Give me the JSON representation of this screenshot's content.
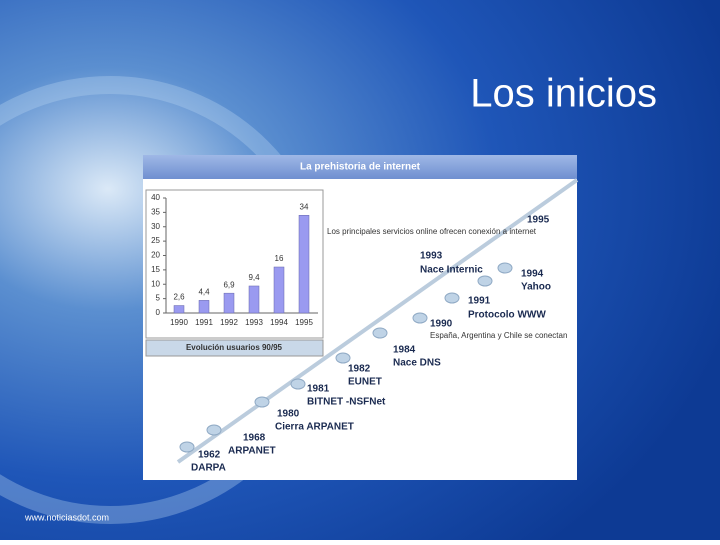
{
  "slide": {
    "title": "Los inicios",
    "footer": "www.noticiasdot.com"
  },
  "chart_data": {
    "type": "bar",
    "title": "La prehistoria de internet",
    "caption": "Evolución usuarios 90/95",
    "categories": [
      "1990",
      "1991",
      "1992",
      "1993",
      "1994",
      "1995"
    ],
    "values": [
      2.6,
      4.4,
      6.9,
      9.4,
      16,
      34
    ],
    "value_labels": [
      "2,6",
      "4,4",
      "6,9",
      "9,4",
      "16",
      "34"
    ],
    "color": "#9a9af0",
    "ylim": [
      0,
      40
    ],
    "yticks": [
      0,
      5,
      10,
      15,
      20,
      25,
      30,
      35,
      40
    ],
    "grid": false
  },
  "timeline": [
    {
      "year": "1962",
      "label": "DARPA"
    },
    {
      "year": "1968",
      "label": "ARPANET"
    },
    {
      "year": "1980",
      "label": "Cierra ARPANET"
    },
    {
      "year": "1981",
      "label": "BITNET -NSFNet"
    },
    {
      "year": "1982",
      "label": "EUNET"
    },
    {
      "year": "1984",
      "label": "Nace DNS"
    },
    {
      "year": "1990",
      "label": "España, Argentina y Chile se conectan"
    },
    {
      "year": "1991",
      "label": "Protocolo WWW"
    },
    {
      "year": "1993",
      "label": "Nace Internic"
    },
    {
      "year": "1994",
      "label": "Yahoo"
    },
    {
      "year": "1995",
      "label": "Los principales servicios online ofrecen conexión a internet"
    }
  ]
}
